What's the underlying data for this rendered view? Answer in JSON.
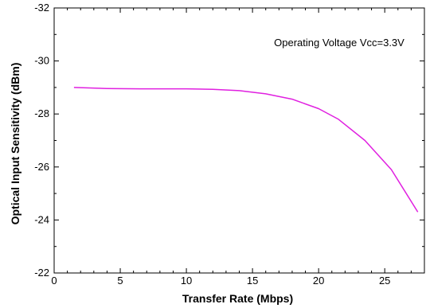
{
  "chart_data": {
    "type": "line",
    "xlabel": "Transfer Rate (Mbps)",
    "ylabel": "Optical Input Sensitivity (dBm)",
    "annotation": "Operating Voltage Vcc=3.3V",
    "xlim": [
      0,
      28
    ],
    "ylim": [
      -32,
      -22
    ],
    "y_reversed": true,
    "x_ticks": [
      0,
      5,
      10,
      15,
      20,
      25
    ],
    "x_tick_labels": [
      "0",
      "5",
      "10",
      "15",
      "20",
      "25"
    ],
    "y_ticks": [
      -32,
      -30,
      -28,
      -26,
      -24,
      -22
    ],
    "y_tick_labels": [
      "-32",
      "-30",
      "-28",
      "-26",
      "-24",
      "-22"
    ],
    "grid": false,
    "series": [
      {
        "color": "#e020e0",
        "x": [
          1.5,
          4,
          6.5,
          8.5,
          10,
          12,
          14,
          16,
          18,
          20,
          21.5,
          23.5,
          25.5,
          27.5
        ],
        "y": [
          -29.0,
          -28.96,
          -28.95,
          -28.95,
          -28.95,
          -28.93,
          -28.88,
          -28.76,
          -28.56,
          -28.2,
          -27.8,
          -27.0,
          -25.9,
          -24.3
        ]
      }
    ]
  }
}
